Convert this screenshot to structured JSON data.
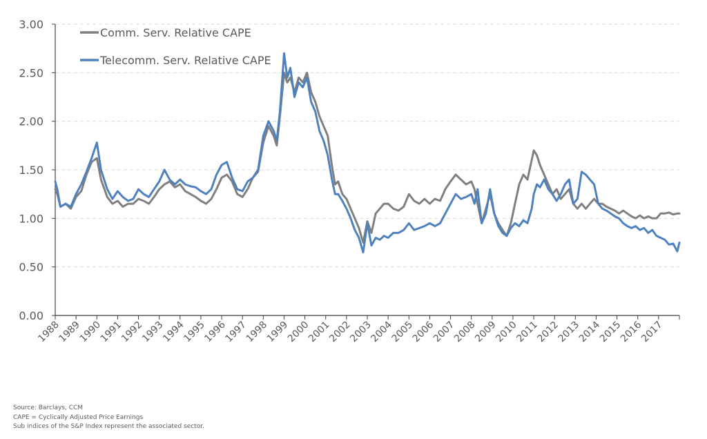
{
  "chart_data": {
    "type": "line",
    "title": "",
    "xlabel": "",
    "ylabel": "",
    "ylim": [
      0,
      3
    ],
    "xlim": [
      1988,
      2018
    ],
    "yticks": [
      "0.00",
      "0.50",
      "1.00",
      "1.50",
      "2.00",
      "2.50",
      "3.00"
    ],
    "ytick_values": [
      0,
      0.5,
      1.0,
      1.5,
      2.0,
      2.5,
      3.0
    ],
    "xticks": [
      "1988",
      "1989",
      "1990",
      "1991",
      "1992",
      "1993",
      "1994",
      "1995",
      "1996",
      "1997",
      "1998",
      "1999",
      "2000",
      "2001",
      "2002",
      "2003",
      "2004",
      "2005",
      "2006",
      "2007",
      "2008",
      "2009",
      "2010",
      "2011",
      "2012",
      "2013",
      "2014",
      "2015",
      "2016",
      "2017"
    ],
    "grid": "horizontal-dashed",
    "legend_position": "top-left",
    "series": [
      {
        "name": "Comm. Serv. Relative CAPE",
        "color": "#7f7f7f",
        "x": [
          1988.0,
          1988.1,
          1988.25,
          1988.5,
          1988.75,
          1989.0,
          1989.25,
          1989.5,
          1989.75,
          1990.0,
          1990.2,
          1990.5,
          1990.75,
          1991.0,
          1991.25,
          1991.5,
          1991.75,
          1992.0,
          1992.25,
          1992.5,
          1992.75,
          1993.0,
          1993.25,
          1993.5,
          1993.75,
          1994.0,
          1994.25,
          1994.5,
          1994.75,
          1995.0,
          1995.25,
          1995.5,
          1995.75,
          1996.0,
          1996.25,
          1996.5,
          1996.75,
          1997.0,
          1997.25,
          1997.5,
          1997.75,
          1998.0,
          1998.25,
          1998.5,
          1998.65,
          1998.8,
          1999.0,
          1999.15,
          1999.3,
          1999.5,
          1999.7,
          1999.9,
          2000.1,
          2000.3,
          2000.5,
          2000.7,
          2000.9,
          2001.1,
          2001.3,
          2001.45,
          2001.6,
          2001.8,
          2002.0,
          2002.2,
          2002.4,
          2002.6,
          2002.8,
          2003.0,
          2003.2,
          2003.4,
          2003.6,
          2003.8,
          2004.0,
          2004.25,
          2004.5,
          2004.75,
          2005.0,
          2005.25,
          2005.5,
          2005.75,
          2006.0,
          2006.25,
          2006.5,
          2006.75,
          2007.0,
          2007.25,
          2007.5,
          2007.75,
          2008.0,
          2008.15,
          2008.3,
          2008.5,
          2008.7,
          2008.9,
          2009.1,
          2009.3,
          2009.5,
          2009.7,
          2009.9,
          2010.1,
          2010.3,
          2010.5,
          2010.7,
          2010.9,
          2011.0,
          2011.15,
          2011.3,
          2011.5,
          2011.7,
          2011.9,
          2012.1,
          2012.3,
          2012.5,
          2012.7,
          2012.9,
          2013.1,
          2013.3,
          2013.5,
          2013.7,
          2013.9,
          2014.1,
          2014.3,
          2014.5,
          2014.7,
          2014.9,
          2015.1,
          2015.3,
          2015.5,
          2015.7,
          2015.9,
          2016.1,
          2016.3,
          2016.5,
          2016.7,
          2016.9,
          2017.1,
          2017.3,
          2017.5,
          2017.7,
          2017.9,
          2018.0
        ],
        "values": [
          1.3,
          1.25,
          1.12,
          1.15,
          1.1,
          1.22,
          1.28,
          1.45,
          1.58,
          1.62,
          1.4,
          1.22,
          1.15,
          1.18,
          1.12,
          1.15,
          1.15,
          1.2,
          1.18,
          1.15,
          1.22,
          1.3,
          1.35,
          1.38,
          1.32,
          1.35,
          1.28,
          1.25,
          1.22,
          1.18,
          1.15,
          1.2,
          1.3,
          1.42,
          1.45,
          1.38,
          1.25,
          1.22,
          1.3,
          1.42,
          1.48,
          1.78,
          1.95,
          1.85,
          1.75,
          2.05,
          2.5,
          2.4,
          2.45,
          2.3,
          2.45,
          2.4,
          2.5,
          2.3,
          2.2,
          2.05,
          1.95,
          1.85,
          1.54,
          1.35,
          1.38,
          1.25,
          1.2,
          1.1,
          1.0,
          0.9,
          0.75,
          0.97,
          0.85,
          1.05,
          1.1,
          1.15,
          1.15,
          1.1,
          1.08,
          1.12,
          1.25,
          1.18,
          1.15,
          1.2,
          1.15,
          1.2,
          1.18,
          1.3,
          1.38,
          1.45,
          1.4,
          1.35,
          1.38,
          1.3,
          1.15,
          0.95,
          1.1,
          1.25,
          1.05,
          0.95,
          0.88,
          0.82,
          0.95,
          1.15,
          1.35,
          1.45,
          1.4,
          1.6,
          1.7,
          1.65,
          1.55,
          1.45,
          1.35,
          1.25,
          1.3,
          1.2,
          1.25,
          1.3,
          1.15,
          1.1,
          1.15,
          1.1,
          1.15,
          1.2,
          1.15,
          1.15,
          1.12,
          1.1,
          1.08,
          1.05,
          1.08,
          1.05,
          1.02,
          1.0,
          1.03,
          1.0,
          1.02,
          1.0,
          1.0,
          1.05,
          1.05,
          1.06,
          1.04,
          1.05,
          1.05
        ]
      },
      {
        "name": "Telecomm. Serv. Relative CAPE",
        "color": "#4f81bd",
        "x": [
          1988.0,
          1988.1,
          1988.25,
          1988.5,
          1988.75,
          1989.0,
          1989.25,
          1989.5,
          1989.75,
          1990.0,
          1990.2,
          1990.5,
          1990.75,
          1991.0,
          1991.25,
          1991.5,
          1991.75,
          1992.0,
          1992.25,
          1992.5,
          1992.75,
          1993.0,
          1993.25,
          1993.5,
          1993.75,
          1994.0,
          1994.25,
          1994.5,
          1994.75,
          1995.0,
          1995.25,
          1995.5,
          1995.75,
          1996.0,
          1996.25,
          1996.5,
          1996.75,
          1997.0,
          1997.25,
          1997.5,
          1997.75,
          1998.0,
          1998.25,
          1998.5,
          1998.65,
          1998.8,
          1999.0,
          1999.15,
          1999.3,
          1999.5,
          1999.7,
          1999.9,
          2000.1,
          2000.3,
          2000.5,
          2000.7,
          2000.9,
          2001.1,
          2001.3,
          2001.45,
          2001.6,
          2001.8,
          2002.0,
          2002.2,
          2002.4,
          2002.6,
          2002.8,
          2003.0,
          2003.2,
          2003.4,
          2003.6,
          2003.8,
          2004.0,
          2004.25,
          2004.5,
          2004.75,
          2005.0,
          2005.25,
          2005.5,
          2005.75,
          2006.0,
          2006.25,
          2006.5,
          2006.75,
          2007.0,
          2007.25,
          2007.5,
          2007.75,
          2008.0,
          2008.15,
          2008.3,
          2008.5,
          2008.7,
          2008.9,
          2009.1,
          2009.3,
          2009.5,
          2009.7,
          2009.9,
          2010.1,
          2010.3,
          2010.5,
          2010.7,
          2010.9,
          2011.0,
          2011.15,
          2011.3,
          2011.5,
          2011.7,
          2011.9,
          2012.1,
          2012.3,
          2012.5,
          2012.7,
          2012.9,
          2013.1,
          2013.3,
          2013.5,
          2013.7,
          2013.9,
          2014.1,
          2014.3,
          2014.5,
          2014.7,
          2014.9,
          2015.1,
          2015.3,
          2015.5,
          2015.7,
          2015.9,
          2016.1,
          2016.3,
          2016.5,
          2016.7,
          2016.9,
          2017.1,
          2017.3,
          2017.5,
          2017.7,
          2017.9,
          2018.0
        ],
        "values": [
          1.38,
          1.3,
          1.12,
          1.15,
          1.12,
          1.25,
          1.35,
          1.48,
          1.62,
          1.78,
          1.5,
          1.3,
          1.2,
          1.28,
          1.22,
          1.18,
          1.2,
          1.3,
          1.25,
          1.22,
          1.3,
          1.38,
          1.5,
          1.4,
          1.35,
          1.4,
          1.35,
          1.33,
          1.32,
          1.28,
          1.25,
          1.3,
          1.45,
          1.55,
          1.58,
          1.42,
          1.3,
          1.28,
          1.38,
          1.42,
          1.5,
          1.85,
          2.0,
          1.9,
          1.8,
          2.1,
          2.7,
          2.45,
          2.55,
          2.25,
          2.4,
          2.35,
          2.45,
          2.2,
          2.1,
          1.9,
          1.8,
          1.65,
          1.4,
          1.25,
          1.25,
          1.18,
          1.1,
          1.0,
          0.88,
          0.8,
          0.65,
          0.95,
          0.72,
          0.8,
          0.78,
          0.82,
          0.8,
          0.85,
          0.85,
          0.88,
          0.95,
          0.88,
          0.9,
          0.92,
          0.95,
          0.92,
          0.95,
          1.05,
          1.15,
          1.25,
          1.2,
          1.22,
          1.25,
          1.15,
          1.3,
          0.95,
          1.05,
          1.3,
          1.05,
          0.92,
          0.85,
          0.82,
          0.9,
          0.95,
          0.92,
          0.98,
          0.95,
          1.1,
          1.25,
          1.35,
          1.32,
          1.4,
          1.3,
          1.25,
          1.18,
          1.25,
          1.35,
          1.4,
          1.15,
          1.2,
          1.48,
          1.45,
          1.4,
          1.35,
          1.15,
          1.1,
          1.08,
          1.05,
          1.02,
          1.0,
          0.95,
          0.92,
          0.9,
          0.92,
          0.88,
          0.9,
          0.85,
          0.88,
          0.82,
          0.8,
          0.78,
          0.73,
          0.74,
          0.66,
          0.75
        ]
      }
    ]
  },
  "notes": [
    "Source: Barclays, CCM",
    "CAPE = Cyclically Adjusted Price Earnings",
    "Sub indices of the S&P Index represent the associated sector."
  ]
}
